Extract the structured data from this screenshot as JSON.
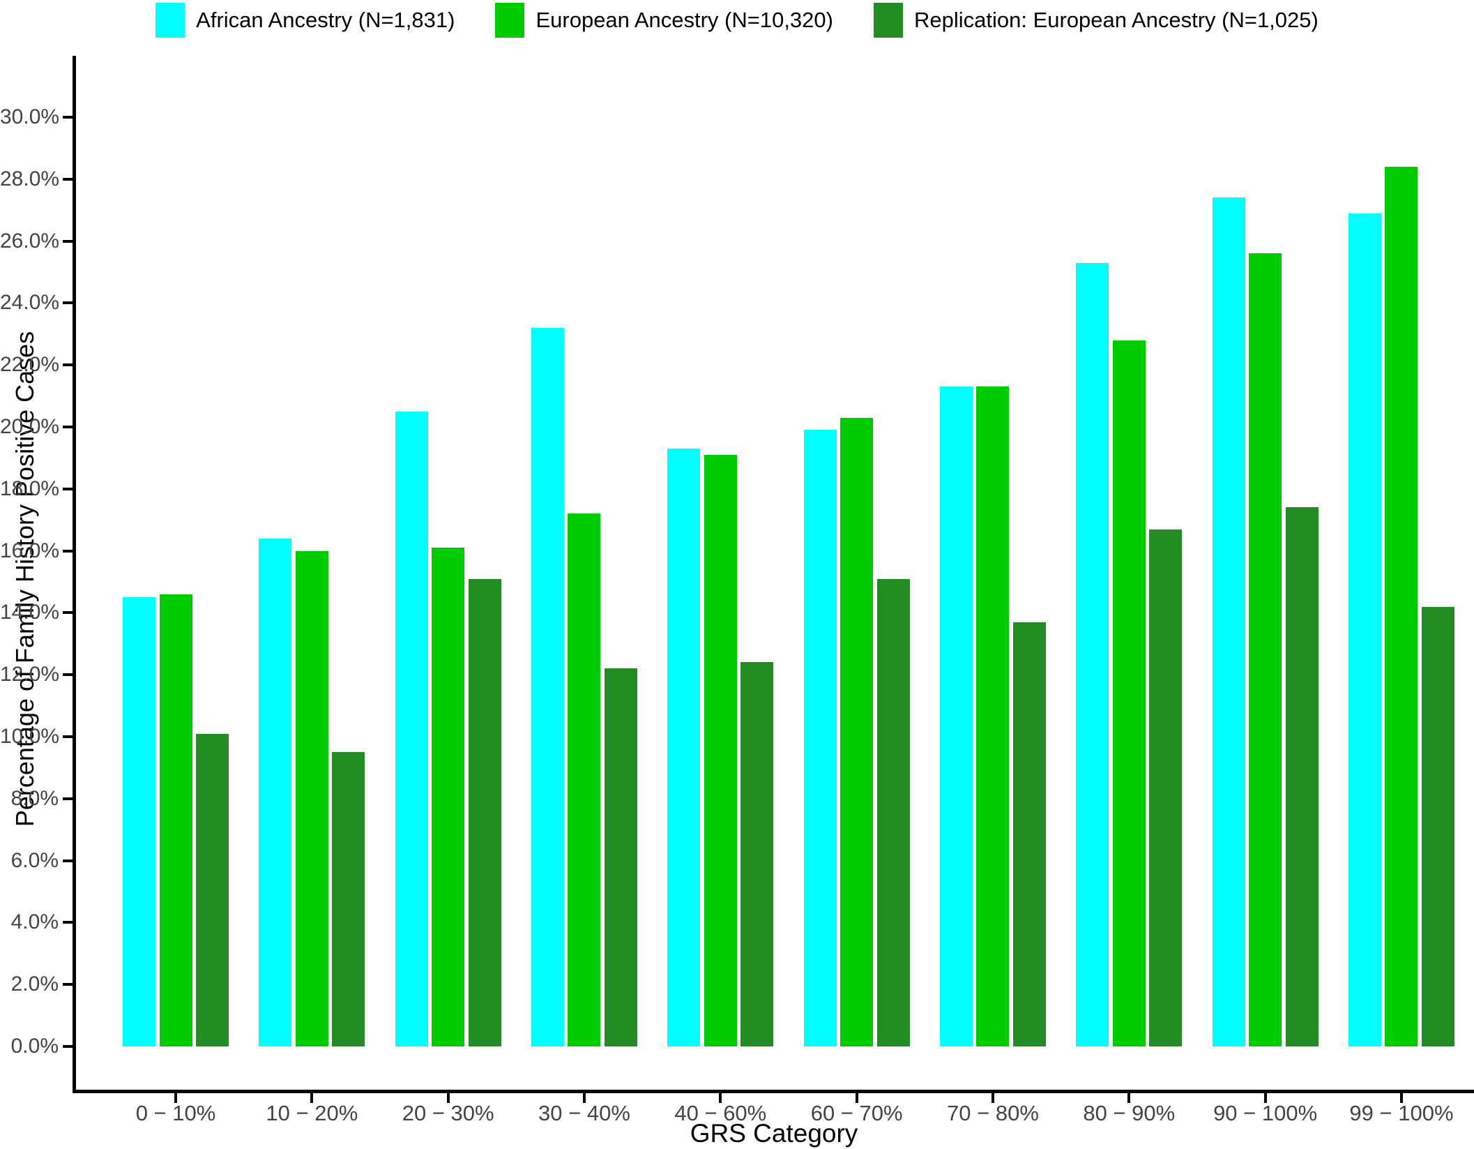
{
  "chart_data": {
    "type": "bar",
    "title": "",
    "xlabel": "GRS Category",
    "ylabel": "Percentage of Family History Positive Cases",
    "categories": [
      "0 − 10%",
      "10 − 20%",
      "20 − 30%",
      "30 − 40%",
      "40 − 60%",
      "60 − 70%",
      "70 − 80%",
      "80 − 90%",
      "90 − 100%",
      "99 − 100%"
    ],
    "series": [
      {
        "name": "African Ancestry (N=1,831)",
        "color": "#00FFFF",
        "values": [
          14.5,
          16.4,
          20.5,
          23.2,
          19.3,
          19.9,
          21.3,
          25.3,
          27.4,
          26.9
        ]
      },
      {
        "name": "European Ancestry (N=10,320)",
        "color": "#00CD00",
        "values": [
          14.6,
          16.0,
          16.1,
          17.2,
          19.1,
          20.3,
          21.3,
          22.8,
          25.6,
          28.4
        ]
      },
      {
        "name": "Replication: European Ancestry (N=1,025)",
        "color": "#228B22",
        "values": [
          10.1,
          9.5,
          15.1,
          12.2,
          12.4,
          15.1,
          13.7,
          16.7,
          17.4,
          14.2
        ]
      }
    ],
    "ylim": [
      0,
      31.5
    ],
    "ytick_step": 2,
    "ytick_format": "percent-1dp",
    "grid": false,
    "legend_position": "top"
  }
}
